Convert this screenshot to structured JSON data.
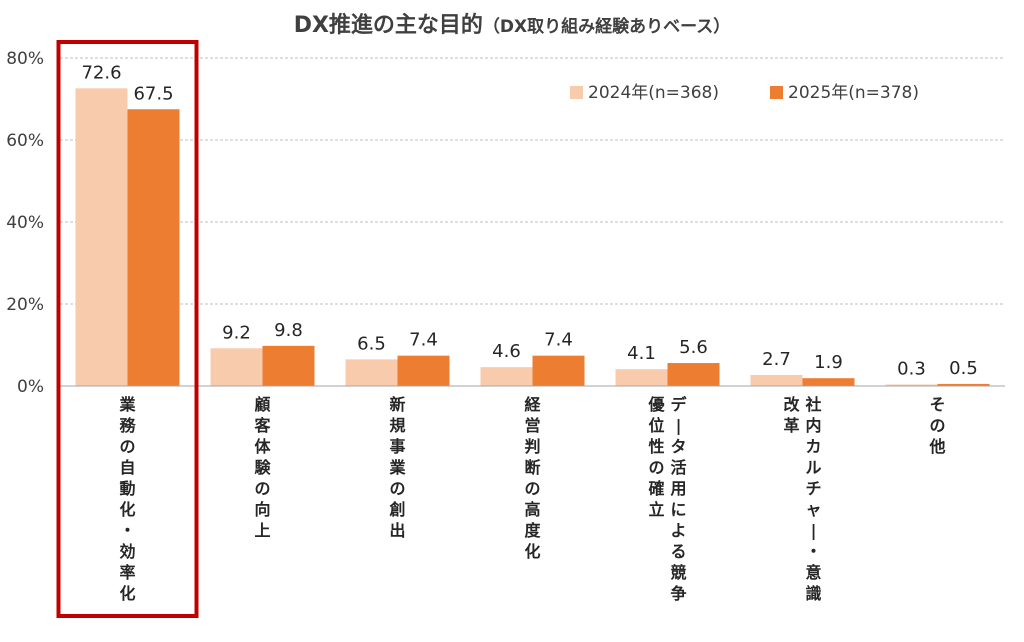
{
  "chart_data": {
    "type": "bar",
    "title": "DX推進の主な目的",
    "subtitle": "（DX取り組み経験ありベース）",
    "categories": [
      "業務の自動化・効率化",
      "顧客体験の向上",
      "新規事業の創出",
      "経営判断の高度化",
      "データ活用による競争優位性の確立",
      "社内カルチャー・意識改革",
      "その他"
    ],
    "category_lines": [
      [
        "業務の自動化・効率化"
      ],
      [
        "顧客体験の向上"
      ],
      [
        "新規事業の創出"
      ],
      [
        "経営判断の高度化"
      ],
      [
        "データ活用による競争",
        "優位性の確立"
      ],
      [
        "社内カルチャー・意識",
        "改革"
      ],
      [
        "その他"
      ]
    ],
    "series": [
      {
        "name": "2024年(n=368)",
        "values": [
          72.6,
          9.2,
          6.5,
          4.6,
          4.1,
          2.7,
          0.3
        ],
        "color": "#f8cbad"
      },
      {
        "name": "2025年(n=378)",
        "values": [
          67.5,
          9.8,
          7.4,
          7.4,
          5.6,
          1.9,
          0.5
        ],
        "color": "#ed7d31"
      }
    ],
    "data_labels": [
      [
        "72.6",
        "9.2",
        "6.5",
        "4.6",
        "4.1",
        "2.7",
        "0.3"
      ],
      [
        "67.5",
        "9.8",
        "7.4",
        "7.4",
        "5.6",
        "1.9",
        "0.5"
      ]
    ],
    "y_ticks": [
      "0%",
      "20%",
      "40%",
      "60%",
      "80%"
    ],
    "y_tick_values": [
      0,
      20,
      40,
      60,
      80
    ],
    "ylim": [
      0,
      80
    ],
    "grid": true,
    "legend_position": "top-right",
    "highlight_category_index": 0,
    "highlight_color": "#c00000",
    "gridline_color": "#bfbfbf",
    "text_color": "#404040"
  }
}
